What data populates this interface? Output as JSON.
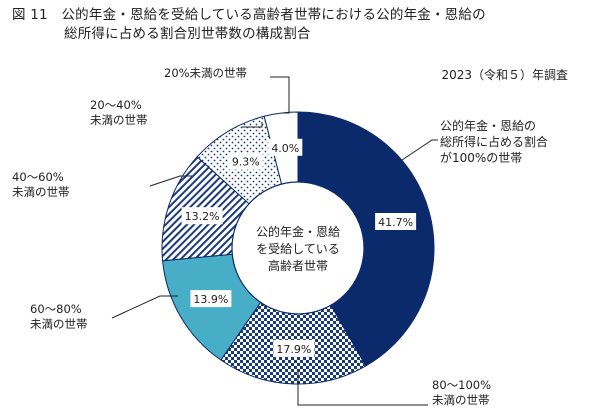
{
  "title": {
    "line1": "図 11　公的年金・恩給を受給している高齢者世帯における公的年金・恩給の",
    "line2": "総所得に占める割合別世帯数の構成割合"
  },
  "survey_label": "2023（令和５）年調査",
  "center_label": [
    "公的年金・恩給",
    "を受給している",
    "高齢者世帯"
  ],
  "chart_data": {
    "type": "donut",
    "unit": "%",
    "slices": [
      {
        "name": "公的年金・恩給の総所得に占める割合が100%の世帯",
        "label_lines": [
          "公的年金・恩給の",
          "総所得に占める割合",
          "が100%の世帯"
        ],
        "value": 41.7,
        "value_label": "41.7%",
        "color": "#0b2a6b",
        "pattern": "solid-navy"
      },
      {
        "name": "80〜100%未満の世帯",
        "label_lines": [
          "80〜100%",
          "未満の世帯"
        ],
        "value": 17.9,
        "value_label": "17.9%",
        "color": "#1a3a80",
        "pattern": "checker"
      },
      {
        "name": "60〜80%未満の世帯",
        "label_lines": [
          "60〜80%",
          "未満の世帯"
        ],
        "value": 13.9,
        "value_label": "13.9%",
        "color": "#48aec8",
        "pattern": "solid-teal"
      },
      {
        "name": "40〜60%未満の世帯",
        "label_lines": [
          "40〜60%",
          "未満の世帯"
        ],
        "value": 13.2,
        "value_label": "13.2%",
        "color": "#1a3a80",
        "pattern": "diagonal"
      },
      {
        "name": "20〜40%未満の世帯",
        "label_lines": [
          "20〜40%",
          "未満の世帯"
        ],
        "value": 9.3,
        "value_label": "9.3%",
        "color": "#1a3a80",
        "pattern": "dots"
      },
      {
        "name": "20%未満の世帯",
        "label_lines": [
          "20%未満の世帯"
        ],
        "value": 4.0,
        "value_label": "4.0%",
        "color": "#ffffff",
        "pattern": "white"
      }
    ]
  }
}
